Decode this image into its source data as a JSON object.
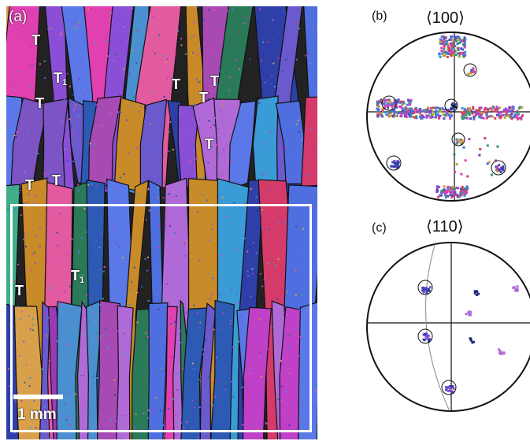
{
  "panel_a": {
    "label": "(a)",
    "twin_labels": [
      {
        "main": "T",
        "sub": ""
      },
      {
        "main": "T",
        "sub": "1"
      },
      {
        "main": "T",
        "sub": ""
      },
      {
        "main": "T",
        "sub": ""
      },
      {
        "main": "T",
        "sub": ""
      },
      {
        "main": "T",
        "sub": ""
      },
      {
        "main": "T",
        "sub": ""
      },
      {
        "main": "T",
        "sub": ""
      },
      {
        "main": "T",
        "sub": ""
      },
      {
        "main": "T",
        "sub": ""
      },
      {
        "main": "T",
        "sub": "1"
      }
    ],
    "scale_bar_label": "1 mm"
  },
  "panel_b": {
    "label": "(b)",
    "title": "⟨100⟩"
  },
  "panel_c": {
    "label": "(c)",
    "title": "⟨110⟩"
  },
  "colors": {
    "grain_palette": [
      "#8a4fd6",
      "#4f6fe0",
      "#c040c8",
      "#3a9bd6",
      "#e040b0",
      "#2e3fa8",
      "#6a5acd",
      "#b06ad8",
      "#2a7a5a",
      "#c98a2a",
      "#d43a6a",
      "#4a8fd0",
      "#9a3ab8",
      "#5a78e8",
      "#e25aa0",
      "#3fae8a",
      "#7c54c4",
      "#d8a04a",
      "#2c5ab4",
      "#a84ab4"
    ],
    "pole_dots": [
      "#b040d0",
      "#e040b0",
      "#4a6ae0",
      "#d84060",
      "#2e9a6a",
      "#c8a030",
      "#6040c0",
      "#3a88d8"
    ],
    "ink": "#111111"
  }
}
